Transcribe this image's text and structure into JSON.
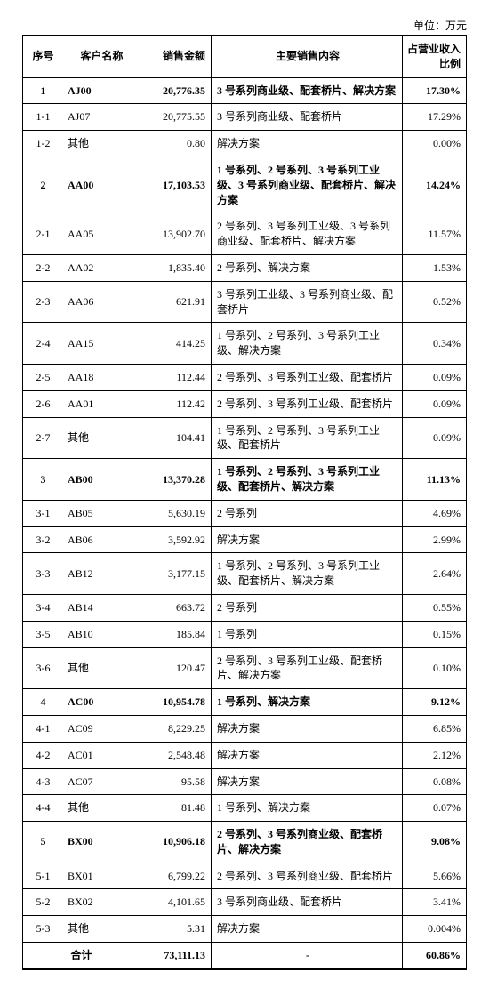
{
  "unit": "单位：万元",
  "headers": {
    "seq": "序号",
    "name": "客户名称",
    "amount": "销售金额",
    "content": "主要销售内容",
    "pct": "占营业收入比例"
  },
  "rows": [
    {
      "seq": "1",
      "name": "AJ00",
      "amount": "20,776.35",
      "content": "3 号系列商业级、配套桥片、解决方案",
      "pct": "17.30%",
      "bold": true
    },
    {
      "seq": "1-1",
      "name": "AJ07",
      "amount": "20,775.55",
      "content": "3 号系列商业级、配套桥片",
      "pct": "17.29%"
    },
    {
      "seq": "1-2",
      "name": "其他",
      "amount": "0.80",
      "content": "解决方案",
      "pct": "0.00%"
    },
    {
      "seq": "2",
      "name": "AA00",
      "amount": "17,103.53",
      "content": "1 号系列、2 号系列、3 号系列工业级、3 号系列商业级、配套桥片、解决方案",
      "pct": "14.24%",
      "bold": true
    },
    {
      "seq": "2-1",
      "name": "AA05",
      "amount": "13,902.70",
      "content": "2 号系列、3 号系列工业级、3 号系列商业级、配套桥片、解决方案",
      "pct": "11.57%"
    },
    {
      "seq": "2-2",
      "name": "AA02",
      "amount": "1,835.40",
      "content": "2 号系列、解决方案",
      "pct": "1.53%"
    },
    {
      "seq": "2-3",
      "name": "AA06",
      "amount": "621.91",
      "content": "3 号系列工业级、3 号系列商业级、配套桥片",
      "pct": "0.52%"
    },
    {
      "seq": "2-4",
      "name": "AA15",
      "amount": "414.25",
      "content": "1 号系列、2 号系列、3 号系列工业级、解决方案",
      "pct": "0.34%"
    },
    {
      "seq": "2-5",
      "name": "AA18",
      "amount": "112.44",
      "content": "2 号系列、3 号系列工业级、配套桥片",
      "pct": "0.09%"
    },
    {
      "seq": "2-6",
      "name": "AA01",
      "amount": "112.42",
      "content": "2 号系列、3 号系列工业级、配套桥片",
      "pct": "0.09%"
    },
    {
      "seq": "2-7",
      "name": "其他",
      "amount": "104.41",
      "content": "1 号系列、2 号系列、3 号系列工业级、配套桥片",
      "pct": "0.09%"
    },
    {
      "seq": "3",
      "name": "AB00",
      "amount": "13,370.28",
      "content": "1 号系列、2 号系列、3 号系列工业级、配套桥片、解决方案",
      "pct": "11.13%",
      "bold": true
    },
    {
      "seq": "3-1",
      "name": "AB05",
      "amount": "5,630.19",
      "content": "2 号系列",
      "pct": "4.69%"
    },
    {
      "seq": "3-2",
      "name": "AB06",
      "amount": "3,592.92",
      "content": "解决方案",
      "pct": "2.99%"
    },
    {
      "seq": "3-3",
      "name": "AB12",
      "amount": "3,177.15",
      "content": "1 号系列、2 号系列、3 号系列工业级、配套桥片、解决方案",
      "pct": "2.64%"
    },
    {
      "seq": "3-4",
      "name": "AB14",
      "amount": "663.72",
      "content": "2 号系列",
      "pct": "0.55%"
    },
    {
      "seq": "3-5",
      "name": "AB10",
      "amount": "185.84",
      "content": "1 号系列",
      "pct": "0.15%"
    },
    {
      "seq": "3-6",
      "name": "其他",
      "amount": "120.47",
      "content": "2 号系列、3 号系列工业级、配套桥片、解决方案",
      "pct": "0.10%"
    },
    {
      "seq": "4",
      "name": "AC00",
      "amount": "10,954.78",
      "content": "1 号系列、解决方案",
      "pct": "9.12%",
      "bold": true
    },
    {
      "seq": "4-1",
      "name": "AC09",
      "amount": "8,229.25",
      "content": "解决方案",
      "pct": "6.85%"
    },
    {
      "seq": "4-2",
      "name": "AC01",
      "amount": "2,548.48",
      "content": "解决方案",
      "pct": "2.12%"
    },
    {
      "seq": "4-3",
      "name": "AC07",
      "amount": "95.58",
      "content": "解决方案",
      "pct": "0.08%"
    },
    {
      "seq": "4-4",
      "name": "其他",
      "amount": "81.48",
      "content": "1 号系列、解决方案",
      "pct": "0.07%"
    },
    {
      "seq": "5",
      "name": "BX00",
      "amount": "10,906.18",
      "content": "2 号系列、3 号系列商业级、配套桥片、解决方案",
      "pct": "9.08%",
      "bold": true
    },
    {
      "seq": "5-1",
      "name": "BX01",
      "amount": "6,799.22",
      "content": "2 号系列、3 号系列商业级、配套桥片",
      "pct": "5.66%"
    },
    {
      "seq": "5-2",
      "name": "BX02",
      "amount": "4,101.65",
      "content": "3 号系列商业级、配套桥片",
      "pct": "3.41%"
    },
    {
      "seq": "5-3",
      "name": "其他",
      "amount": "5.31",
      "content": "解决方案",
      "pct": "0.004%"
    }
  ],
  "total": {
    "label": "合计",
    "amount": "73,111.13",
    "content": "-",
    "pct": "60.86%"
  }
}
